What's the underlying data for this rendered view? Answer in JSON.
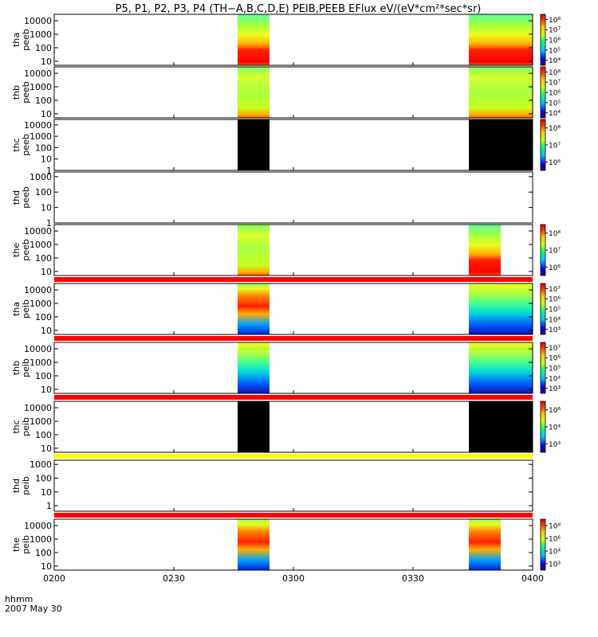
{
  "title": "P5, P1, P2, P3, P4 (TH−A,B,C,D,E) PEIB,PEEB EFlux eV/(eV*cm²*sec*sr)",
  "footer": {
    "time_label": "hhmm",
    "date_label": "2007 May 30"
  },
  "chart_data": {
    "type": "heatmap",
    "x_unit": "hhmm",
    "xlim": [
      "0200",
      "0400"
    ],
    "x_tick_labels": [
      "0200",
      "0230",
      "0300",
      "0330",
      "0400"
    ],
    "panels": [
      {
        "probe": "tha",
        "product": "peeb",
        "y_tick_labels": [
          "10",
          "100",
          "1000",
          "10000"
        ],
        "ylim": [
          5,
          30000
        ],
        "colorbar_labels": [
          "10⁴",
          "10⁵",
          "10⁶",
          "10⁷",
          "10⁸"
        ],
        "clim_log10": [
          3.5,
          8
        ],
        "fill": "spectrum",
        "separator": null,
        "intervals": [
          {
            "start": "0246",
            "end": "0254",
            "character": "high"
          },
          {
            "start": "0344",
            "end": "0400",
            "character": "high"
          }
        ]
      },
      {
        "probe": "thb",
        "product": "peeb",
        "y_tick_labels": [
          "10",
          "100",
          "1000",
          "10000"
        ],
        "ylim": [
          5,
          30000
        ],
        "colorbar_labels": [
          "10⁴",
          "10⁵",
          "10⁶",
          "10⁷",
          "10⁸"
        ],
        "clim_log10": [
          3.5,
          8
        ],
        "fill": "spectrum",
        "separator": null,
        "intervals": [
          {
            "start": "0246",
            "end": "0254",
            "character": "medium"
          },
          {
            "start": "0344",
            "end": "0400",
            "character": "medium"
          }
        ]
      },
      {
        "probe": "thc",
        "product": "peeb",
        "y_tick_labels": [
          "1",
          "10",
          "100",
          "1000",
          "10000"
        ],
        "ylim": [
          1,
          30000
        ],
        "colorbar_labels": [
          "10⁶",
          "10⁷",
          "10⁸"
        ],
        "clim_log10": [
          5.7,
          8.2
        ],
        "fill": "black",
        "separator": null,
        "intervals": [
          {
            "start": "0246",
            "end": "0254"
          },
          {
            "start": "0344",
            "end": "0400"
          }
        ]
      },
      {
        "probe": "thd",
        "product": "peeb",
        "y_tick_labels": [
          "1",
          "10",
          "100",
          "1000"
        ],
        "ylim": [
          1,
          2000
        ],
        "colorbar_labels": [],
        "fill": "none",
        "separator": null,
        "intervals": []
      },
      {
        "probe": "the",
        "product": "peeb",
        "y_tick_labels": [
          "10",
          "100",
          "1000",
          "10000"
        ],
        "ylim": [
          5,
          30000
        ],
        "colorbar_labels": [
          "10⁶",
          "10⁷",
          "10⁸"
        ],
        "clim_log10": [
          5,
          8.2
        ],
        "fill": "spectrum",
        "separator": null,
        "intervals": [
          {
            "start": "0246",
            "end": "0254",
            "character": "medium"
          },
          {
            "start": "0344",
            "end": "0352",
            "character": "high"
          }
        ]
      },
      {
        "probe": "tha",
        "product": "peib",
        "y_tick_labels": [
          "10",
          "100",
          "1000",
          "10000"
        ],
        "ylim": [
          5,
          30000
        ],
        "colorbar_labels": [
          "10³",
          "10⁴",
          "10⁵",
          "10⁶",
          "10⁷"
        ],
        "clim_log10": [
          2.8,
          7.2
        ],
        "fill": "spectrum",
        "separator": "#ff0000",
        "intervals": [
          {
            "start": "0246",
            "end": "0254",
            "character": "ion-high"
          },
          {
            "start": "0344",
            "end": "0400",
            "character": "ion"
          }
        ]
      },
      {
        "probe": "thb",
        "product": "peib",
        "y_tick_labels": [
          "10",
          "100",
          "1000",
          "10000"
        ],
        "ylim": [
          5,
          30000
        ],
        "colorbar_labels": [
          "10³",
          "10⁴",
          "10⁵",
          "10⁶",
          "10⁷"
        ],
        "clim_log10": [
          2.8,
          7.2
        ],
        "fill": "spectrum",
        "separator": "#ff0000",
        "intervals": [
          {
            "start": "0246",
            "end": "0254",
            "character": "ion"
          },
          {
            "start": "0344",
            "end": "0400",
            "character": "ion"
          }
        ]
      },
      {
        "probe": "thc",
        "product": "peib",
        "y_tick_labels": [
          "10",
          "100",
          "1000",
          "10000"
        ],
        "ylim": [
          5,
          30000
        ],
        "colorbar_labels": [
          "10³",
          "10⁴",
          "10⁶"
        ],
        "clim_log10": [
          2.8,
          6.8
        ],
        "fill": "black",
        "separator": "#ff0000",
        "intervals": [
          {
            "start": "0246",
            "end": "0254"
          },
          {
            "start": "0344",
            "end": "0400"
          }
        ]
      },
      {
        "probe": "thd",
        "product": "peib",
        "y_tick_labels": [
          "1",
          "10",
          "100",
          "1000"
        ],
        "ylim": [
          0.4,
          2000
        ],
        "colorbar_labels": [],
        "fill": "none",
        "separator": "#ffff00",
        "intervals": []
      },
      {
        "probe": "the",
        "product": "peib",
        "y_tick_labels": [
          "10",
          "100",
          "1000",
          "10000"
        ],
        "ylim": [
          5,
          30000
        ],
        "colorbar_labels": [
          "10³",
          "10⁴",
          "10⁶",
          "10⁸"
        ],
        "clim_log10": [
          2.8,
          8.2
        ],
        "fill": "spectrum",
        "separator": "#ff0000",
        "intervals": [
          {
            "start": "0246",
            "end": "0254",
            "character": "ion-high"
          },
          {
            "start": "0344",
            "end": "0352",
            "character": "ion-high"
          }
        ]
      }
    ]
  }
}
